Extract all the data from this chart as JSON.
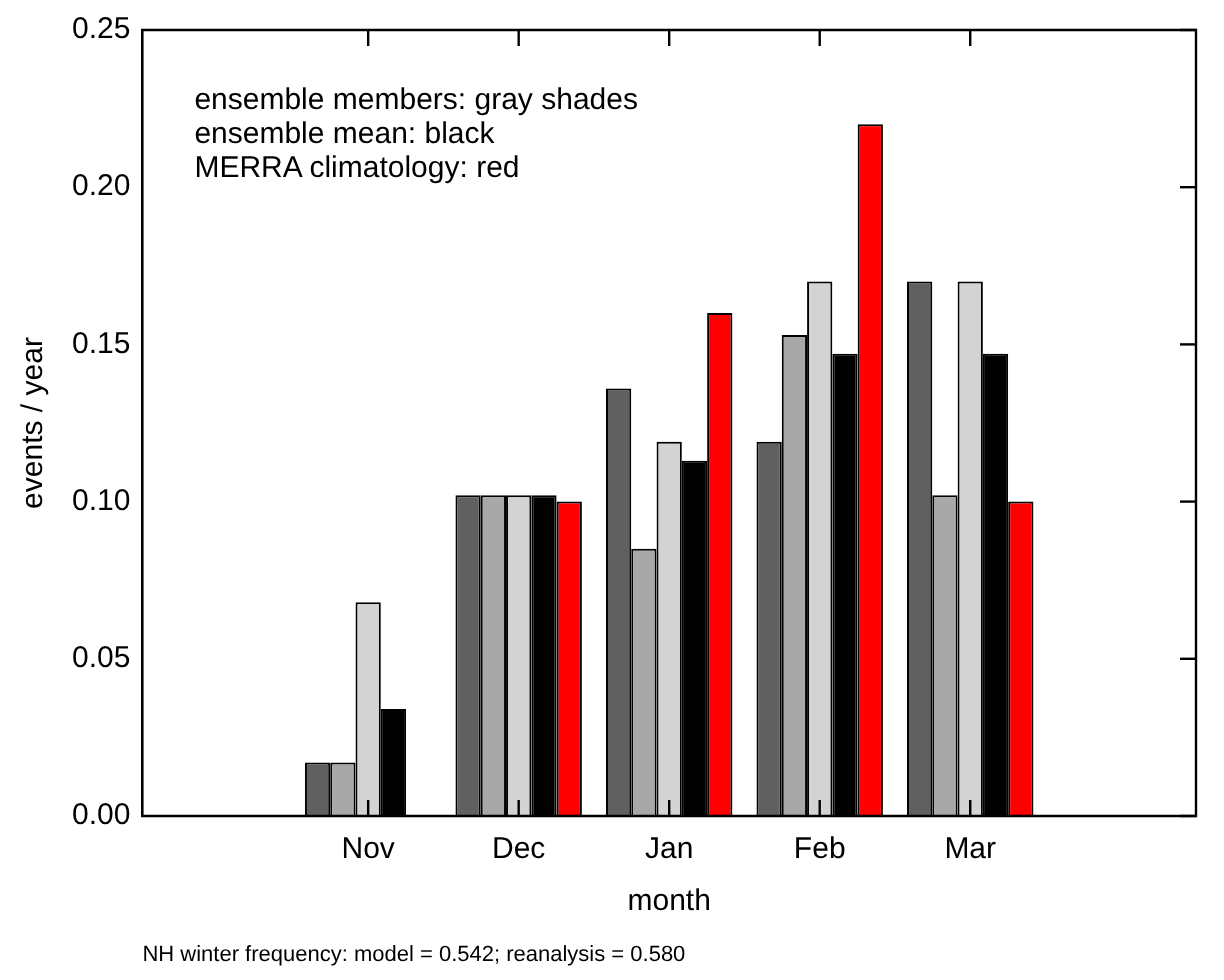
{
  "chart_data": {
    "type": "bar",
    "xlabel": "month",
    "ylabel": "events / year",
    "categories": [
      null,
      "Nov",
      "Dec",
      "Jan",
      "Feb",
      "Mar",
      null
    ],
    "series": [
      {
        "color": "#606060",
        "values": [
          null,
          0.017,
          0.102,
          0.136,
          0.119,
          0.17,
          null
        ]
      },
      {
        "color": "#a8a8a8",
        "values": [
          null,
          0.017,
          0.102,
          0.085,
          0.153,
          0.102,
          null
        ]
      },
      {
        "color": "#d3d3d3",
        "values": [
          null,
          0.068,
          0.102,
          0.119,
          0.17,
          0.17,
          null
        ]
      },
      {
        "color": "#000000",
        "values": [
          null,
          0.034,
          0.102,
          0.113,
          0.147,
          0.147,
          null
        ]
      },
      {
        "color": "#ff0000",
        "values": [
          null,
          null,
          0.1,
          0.16,
          0.22,
          0.1,
          null
        ]
      }
    ],
    "ylim": [
      0,
      0.25
    ],
    "yticks": [
      {
        "value": 0,
        "label": "0.00"
      },
      {
        "value": 0.05,
        "label": "0.05"
      },
      {
        "value": 0.1,
        "label": "0.10"
      },
      {
        "value": 0.15,
        "label": "0.15"
      },
      {
        "value": 0.2,
        "label": "0.20"
      },
      {
        "value": 0.25,
        "label": "0.25"
      }
    ],
    "grid": false,
    "legend": false,
    "annotations": [
      "ensemble members: gray shades",
      "ensemble mean: black",
      "MERRA climatology: red",
      "NH winter frequency: model = 0.542; reanalysis = 0.580"
    ]
  }
}
